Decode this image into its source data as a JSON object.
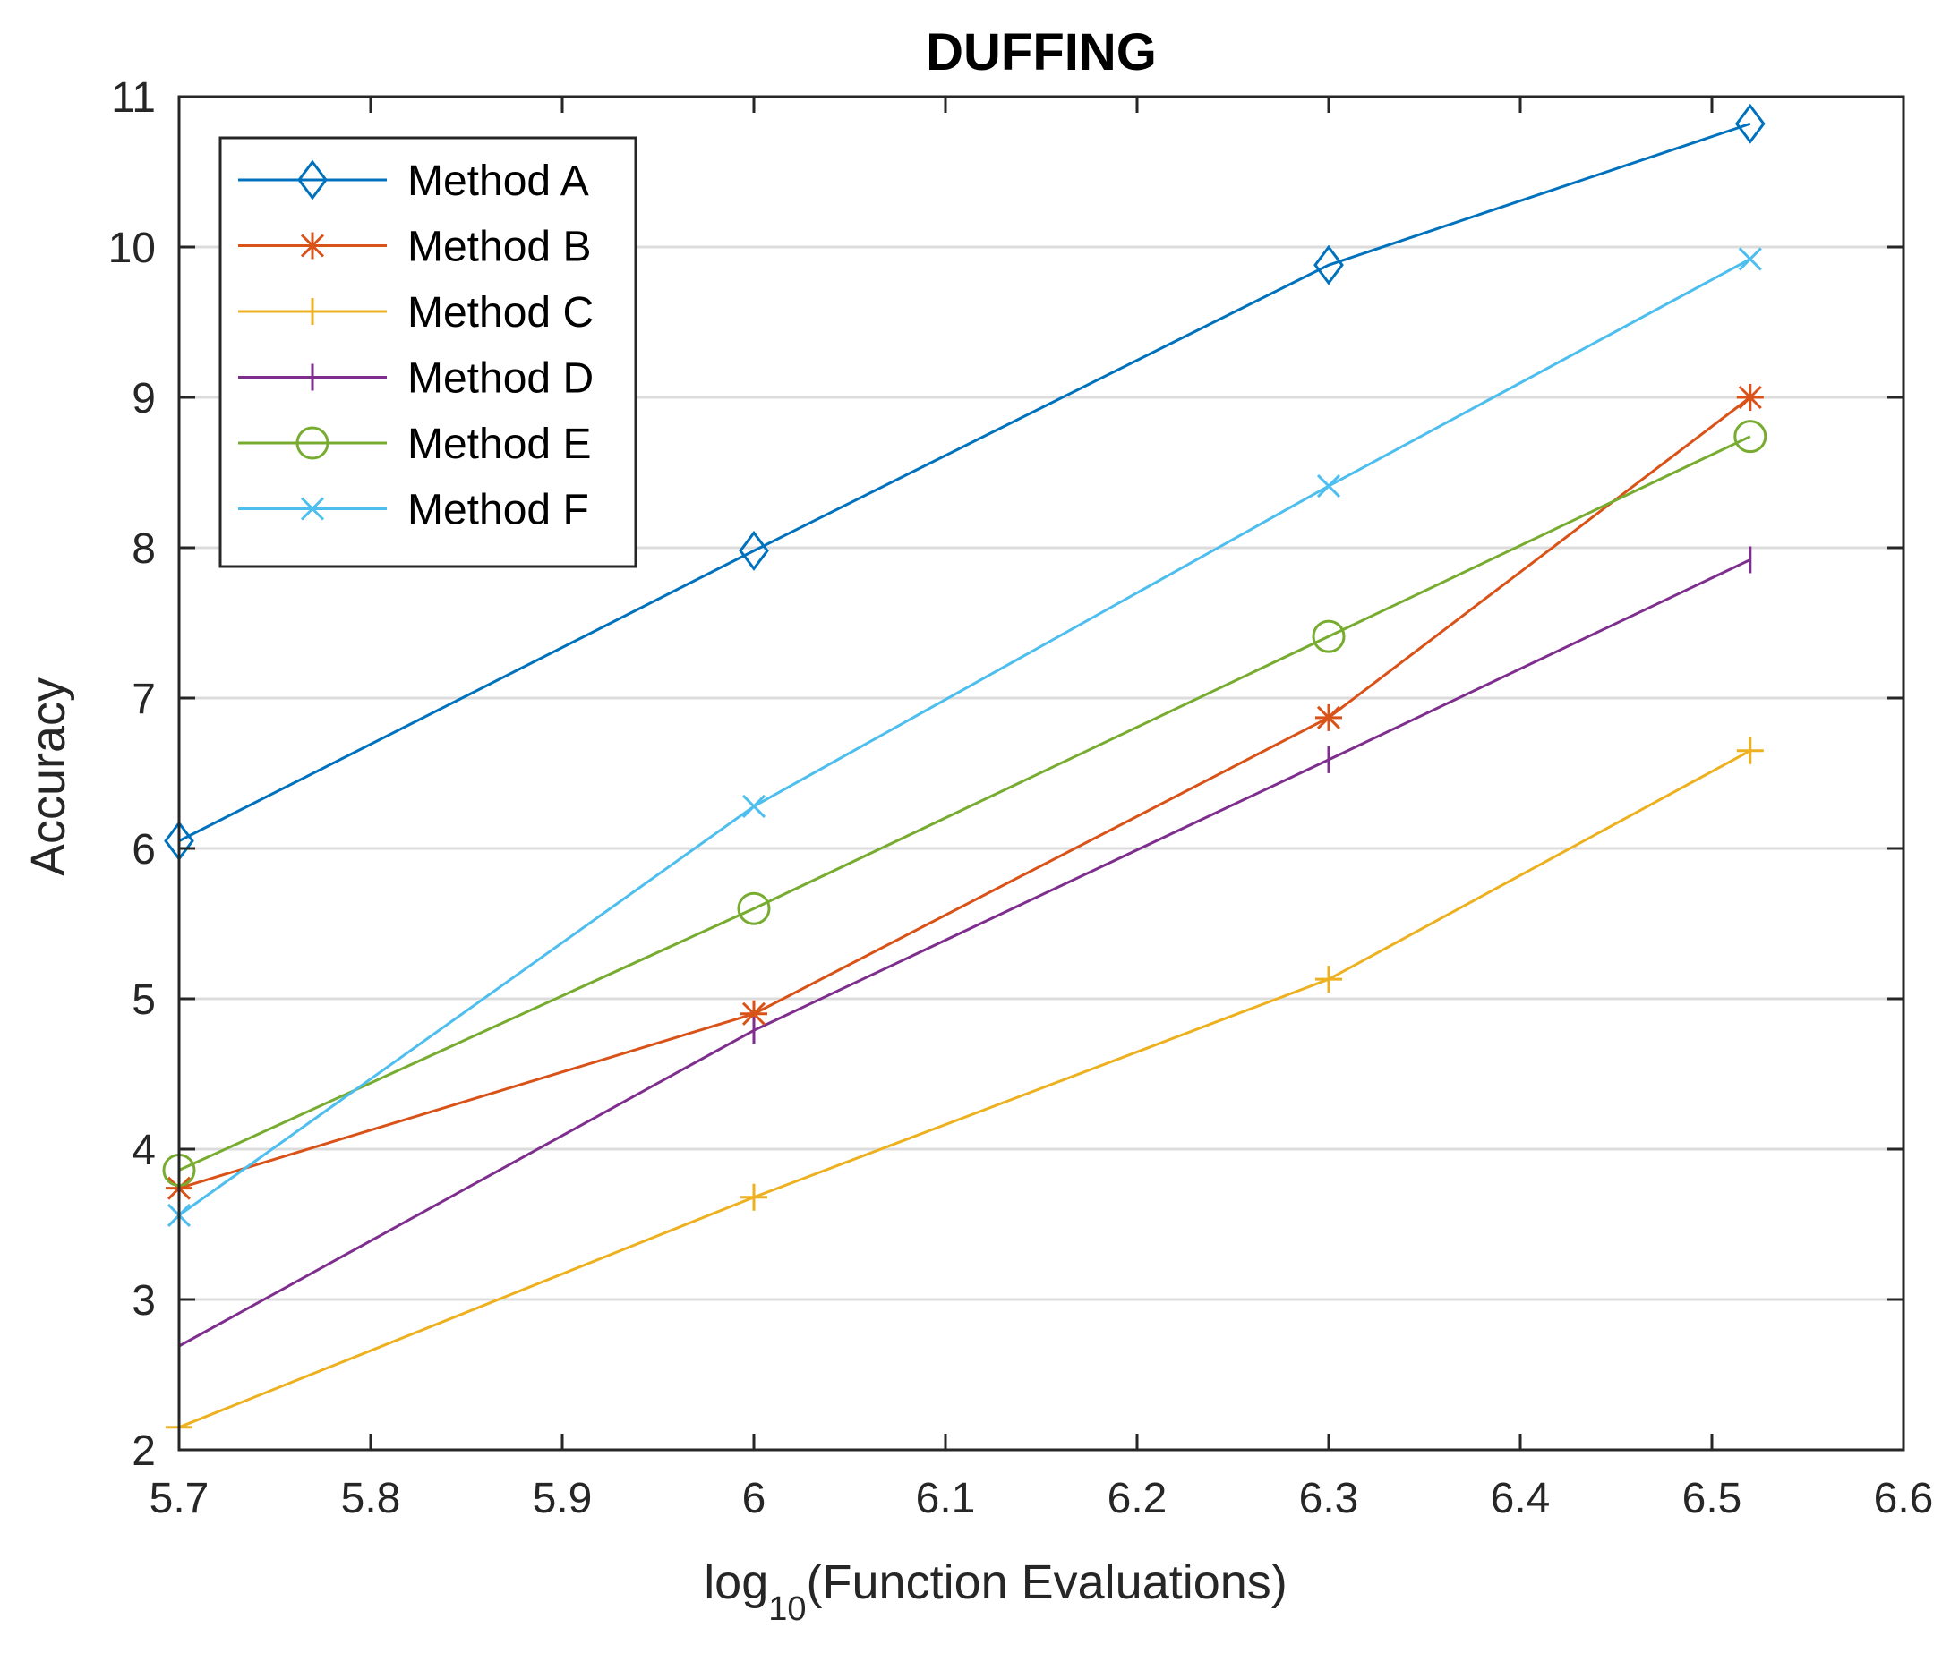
{
  "chart_data": {
    "type": "line",
    "title": "DUFFING",
    "xlabel": {
      "prefix": "log",
      "subscript": "10",
      "suffix": "(Function Evaluations)"
    },
    "ylabel": "Accuracy",
    "xlim": [
      5.7,
      6.6
    ],
    "ylim": [
      2,
      11
    ],
    "xticks": [
      5.7,
      5.8,
      5.9,
      6.0,
      6.1,
      6.2,
      6.3,
      6.4,
      6.5,
      6.6
    ],
    "xtick_labels": [
      "5.7",
      "5.8",
      "5.9",
      "6",
      "6.1",
      "6.2",
      "6.3",
      "6.4",
      "6.5",
      "6.6"
    ],
    "yticks": [
      2,
      3,
      4,
      5,
      6,
      7,
      8,
      9,
      10,
      11
    ],
    "ytick_labels": [
      "2",
      "3",
      "4",
      "5",
      "6",
      "7",
      "8",
      "9",
      "10",
      "11"
    ],
    "grid": "horizontal",
    "legend_position": "top-left",
    "x": [
      5.7,
      6.0,
      6.3,
      6.52
    ],
    "series": [
      {
        "name": "Method A",
        "marker": "diamond",
        "color": "#0072BD",
        "values": [
          6.05,
          7.98,
          9.88,
          10.82
        ]
      },
      {
        "name": "Method B",
        "marker": "asterisk",
        "color": "#D95319",
        "values": [
          3.74,
          4.9,
          6.87,
          9.0
        ]
      },
      {
        "name": "Method C",
        "marker": "plus",
        "color": "#EDB120",
        "values": [
          2.15,
          3.68,
          5.13,
          6.65
        ]
      },
      {
        "name": "Method D",
        "marker": "vline",
        "color": "#7E2F8E",
        "values": [
          2.69,
          4.79,
          6.59,
          7.92
        ]
      },
      {
        "name": "Method E",
        "marker": "circle",
        "color": "#77AC30",
        "values": [
          3.86,
          5.6,
          7.41,
          8.74
        ]
      },
      {
        "name": "Method F",
        "marker": "x",
        "color": "#4DBEEE",
        "values": [
          3.56,
          6.28,
          8.41,
          9.92
        ]
      }
    ]
  }
}
